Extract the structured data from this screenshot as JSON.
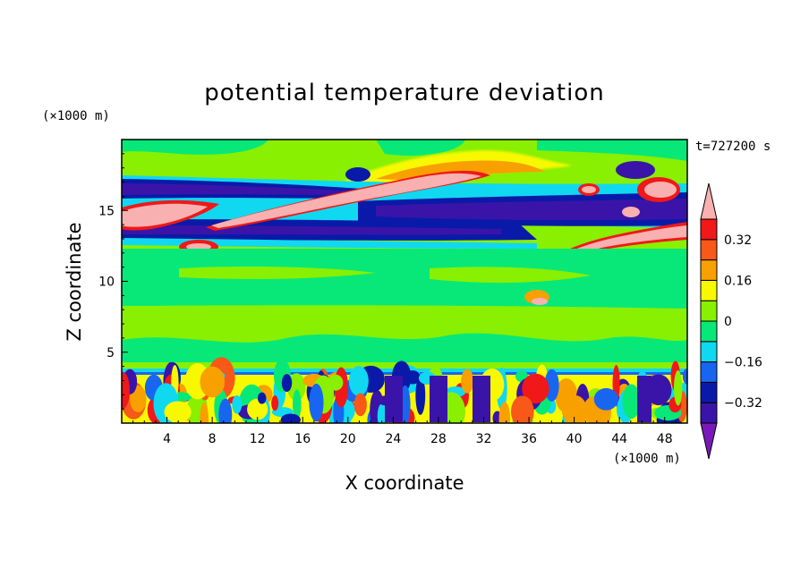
{
  "chart_data": {
    "type": "heatmap",
    "title": "potential temperature deviation",
    "xlabel": "X coordinate",
    "ylabel": "Z coordinate",
    "x_unit": "(×1000 m)",
    "y_unit": "(×1000 m)",
    "time_label": "t=727200 s",
    "xlim": [
      0,
      50
    ],
    "ylim": [
      0,
      20
    ],
    "x_ticks": [
      4,
      8,
      12,
      16,
      20,
      24,
      28,
      32,
      36,
      40,
      44,
      48
    ],
    "y_ticks": [
      5,
      10,
      15
    ],
    "colorbar": {
      "levels": [
        -0.4,
        -0.32,
        -0.24,
        -0.16,
        -0.08,
        0,
        0.08,
        0.16,
        0.24,
        0.32,
        0.4
      ],
      "tick_labels": [
        "0.32",
        "0.16",
        "0",
        "−0.16",
        "−0.32"
      ],
      "tick_values": [
        0.32,
        0.16,
        0,
        -0.16,
        -0.32
      ],
      "colors": [
        "#7a18b8",
        "#3a14a8",
        "#0a1aa8",
        "#1866f0",
        "#10d8f0",
        "#08e878",
        "#88f000",
        "#f8f800",
        "#f8a000",
        "#f85818",
        "#f01818",
        "#f8b0b0"
      ],
      "extend": "both"
    },
    "features": [
      {
        "type": "band",
        "x": [
          0,
          50
        ],
        "z": [
          15.2,
          16.8
        ],
        "value": -0.36
      },
      {
        "type": "band",
        "x": [
          0,
          50
        ],
        "z": [
          12.8,
          14.2
        ],
        "value": -0.36
      },
      {
        "type": "band",
        "x": [
          0,
          50
        ],
        "z": [
          0,
          3.6
        ],
        "value": "mixed"
      },
      {
        "type": "plume",
        "x": [
          14,
          34
        ],
        "z": [
          14.2,
          17.0
        ],
        "value": 0.42
      },
      {
        "type": "plume",
        "x": [
          38,
          50
        ],
        "z": [
          11.0,
          14.5
        ],
        "value": 0.42
      }
    ]
  }
}
